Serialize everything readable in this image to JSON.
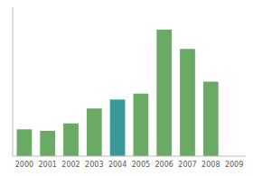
{
  "chart_data": {
    "type": "bar",
    "categories": [
      "2000",
      "2001",
      "2002",
      "2003",
      "2004",
      "2005",
      "2006",
      "2007",
      "2008",
      "2009"
    ],
    "values": [
      1.8,
      1.7,
      2.2,
      3.2,
      3.8,
      4.2,
      8.5,
      7.2,
      5.0,
      0
    ],
    "colors": [
      "#6aaa64",
      "#6aaa64",
      "#6aaa64",
      "#6aaa64",
      "#3a9a9a",
      "#6aaa64",
      "#6aaa64",
      "#6aaa64",
      "#6aaa64",
      "#6aaa64"
    ],
    "ylim": [
      0,
      10
    ],
    "grid": false,
    "tick_labels": "x"
  }
}
